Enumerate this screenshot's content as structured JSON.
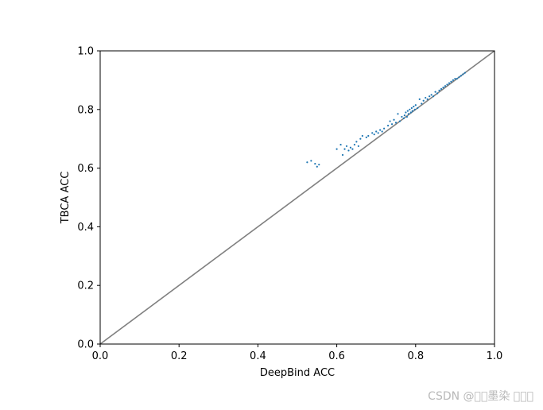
{
  "chart_data": {
    "type": "scatter",
    "xlabel": "DeepBind ACC",
    "ylabel": "TBCA ACC",
    "xlim": [
      0.0,
      1.0
    ],
    "ylim": [
      0.0,
      1.0
    ],
    "x_ticks": [
      "0.0",
      "0.2",
      "0.4",
      "0.6",
      "0.8",
      "1.0"
    ],
    "y_ticks": [
      "0.0",
      "0.2",
      "0.4",
      "0.6",
      "0.8",
      "1.0"
    ],
    "grid": false,
    "reference_line": {
      "from": [
        0,
        0
      ],
      "to": [
        1,
        1
      ],
      "color": "#808080"
    },
    "point_color": "#1f77b4",
    "series": [
      {
        "x": [
          0.525,
          0.535,
          0.545,
          0.55,
          0.555,
          0.6,
          0.61,
          0.615,
          0.62,
          0.625,
          0.63,
          0.635,
          0.64,
          0.645,
          0.65,
          0.655,
          0.66,
          0.665,
          0.675,
          0.68,
          0.69,
          0.695,
          0.7,
          0.705,
          0.71,
          0.715,
          0.72,
          0.73,
          0.735,
          0.74,
          0.745,
          0.75,
          0.755,
          0.76,
          0.765,
          0.77,
          0.772,
          0.775,
          0.778,
          0.78,
          0.782,
          0.785,
          0.788,
          0.79,
          0.792,
          0.795,
          0.798,
          0.8,
          0.805,
          0.81,
          0.815,
          0.82,
          0.825,
          0.83,
          0.835,
          0.84,
          0.845,
          0.85,
          0.855,
          0.86,
          0.865,
          0.87,
          0.875,
          0.88,
          0.885,
          0.89,
          0.895,
          0.9,
          0.905,
          0.91,
          0.915,
          0.92,
          0.925
        ],
        "y": [
          0.62,
          0.625,
          0.615,
          0.605,
          0.612,
          0.665,
          0.68,
          0.645,
          0.665,
          0.675,
          0.66,
          0.67,
          0.665,
          0.68,
          0.69,
          0.675,
          0.7,
          0.71,
          0.705,
          0.71,
          0.72,
          0.715,
          0.725,
          0.72,
          0.73,
          0.725,
          0.735,
          0.745,
          0.76,
          0.75,
          0.765,
          0.755,
          0.785,
          0.76,
          0.775,
          0.77,
          0.78,
          0.79,
          0.775,
          0.795,
          0.785,
          0.8,
          0.79,
          0.805,
          0.795,
          0.81,
          0.8,
          0.815,
          0.805,
          0.835,
          0.82,
          0.83,
          0.84,
          0.835,
          0.845,
          0.85,
          0.845,
          0.86,
          0.855,
          0.865,
          0.87,
          0.875,
          0.88,
          0.885,
          0.89,
          0.895,
          0.9,
          0.905,
          0.905,
          0.91,
          0.915,
          0.92,
          0.925
        ]
      }
    ]
  },
  "watermark": "CSDN @\u0000\u0000墨染 \u0000\u0000\u0000"
}
